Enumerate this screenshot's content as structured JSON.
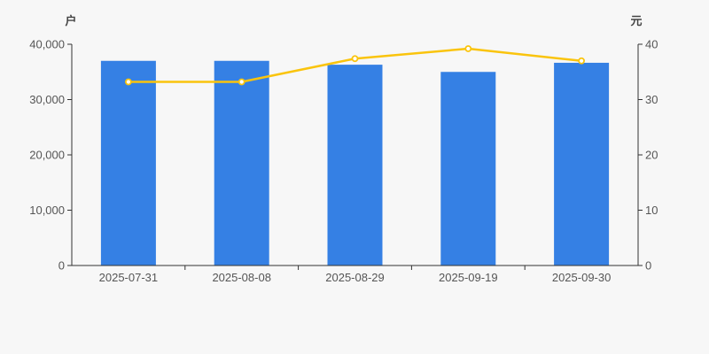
{
  "page": {
    "background_color": "#f7f7f7"
  },
  "chart_data": {
    "type": "bar",
    "title": "",
    "categories": [
      "2025-07-31",
      "2025-08-08",
      "2025-08-29",
      "2025-09-19",
      "2025-09-30"
    ],
    "series": [
      {
        "name": "households_bar",
        "type": "bar",
        "axis": "left",
        "unit": "户",
        "color": "#3580e4",
        "values": [
          37000,
          37000,
          36300,
          35000,
          36650
        ]
      },
      {
        "name": "price_line",
        "type": "line",
        "axis": "right",
        "unit": "元",
        "color": "#fac40d",
        "marker": "hollow-circle",
        "marker_fill": "#ffffff",
        "values": [
          33.2,
          33.2,
          37.4,
          39.2,
          37.0
        ]
      }
    ],
    "left_axis": {
      "title": "户",
      "min": 0,
      "max": 40000,
      "tick_labels": [
        "0",
        "10,000",
        "20,000",
        "30,000",
        "40,000"
      ]
    },
    "right_axis": {
      "title": "元",
      "min": 0,
      "max": 40,
      "tick_labels": [
        "0",
        "10",
        "20",
        "30",
        "40"
      ]
    },
    "x_axis": {
      "labels": [
        "2025-07-31",
        "2025-08-08",
        "2025-08-29",
        "2025-09-19",
        "2025-09-30"
      ]
    },
    "grid": false,
    "legend_position": "none",
    "style": {
      "axis_line_color": "#333333",
      "tick_text_color": "#555555",
      "axis_title_color": "#444444",
      "background": "#f7f7f7"
    }
  }
}
